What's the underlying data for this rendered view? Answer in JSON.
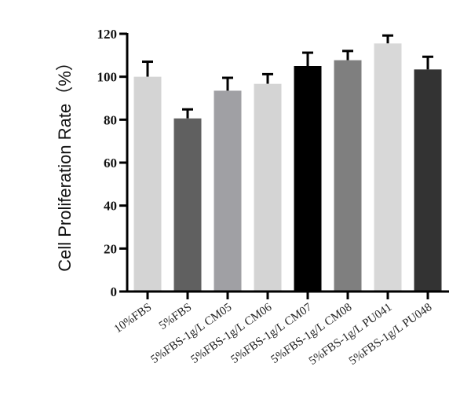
{
  "chart_data": {
    "type": "bar",
    "title": "",
    "xlabel": "",
    "ylabel": "Cell Proliferation Rate（%）",
    "ylim": [
      0,
      120
    ],
    "yticks": [
      0,
      20,
      40,
      60,
      80,
      100,
      120
    ],
    "grid": false,
    "categories": [
      "10%FBS",
      "5%FBS",
      "5%FBS-1g/L CM05",
      "5%FBS-1g/L CM06",
      "5%FBS-1g/L CM07",
      "5%FBS-1g/L CM08",
      "5%FBS-1g/L PU041",
      "5%FBS-1g/L PU048"
    ],
    "values": [
      100,
      80.6,
      93.5,
      96.7,
      105,
      107.7,
      115.5,
      103.4
    ],
    "error_upper": [
      7,
      4.2,
      6,
      4.5,
      6.2,
      4.3,
      3.7,
      5.9
    ],
    "colors": [
      "#d4d4d4",
      "#606060",
      "#a0a0a4",
      "#d4d4d4",
      "#000000",
      "#7f7f7f",
      "#d8d8d8",
      "#333333"
    ]
  }
}
